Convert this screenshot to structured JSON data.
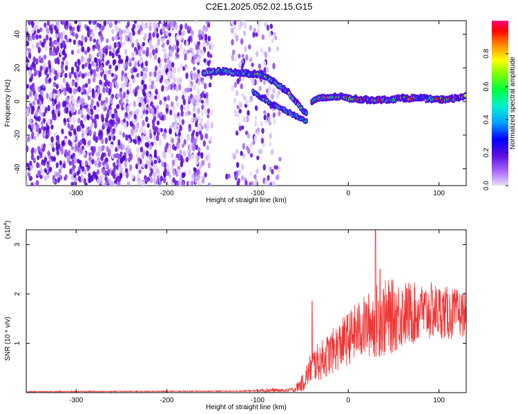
{
  "title": "C2E1.2025.052.02.15.G15",
  "colors": {
    "snr_line": "#ee3333",
    "plot_frame": "#000000"
  },
  "chart_data": [
    {
      "type": "heatmap",
      "title": "C2E1.2025.052.02.15.G15",
      "xlabel": "Height of straight line (km)",
      "ylabel": "Frequency (Hz)",
      "xlim": [
        -355,
        130
      ],
      "ylim": [
        -50,
        48
      ],
      "xticks": [
        "-300",
        "-200",
        "-100",
        "0",
        "100"
      ],
      "xtick_values": [
        -300,
        -200,
        -100,
        0,
        100
      ],
      "yticks": [
        "-40",
        "-20",
        "0",
        "20",
        "40"
      ],
      "ytick_values": [
        -40,
        -20,
        0,
        20,
        40
      ],
      "colorbar": {
        "label": "Normalized spectral amplitude",
        "range": [
          0,
          1
        ],
        "ticks": [
          "0.0",
          "0.2",
          "0.4",
          "0.6",
          "0.8"
        ],
        "tick_values": [
          0,
          0.2,
          0.4,
          0.6,
          0.8
        ]
      },
      "ridge": {
        "description": "strong signal track",
        "points": [
          [
            -160,
            17
          ],
          [
            -140,
            18
          ],
          [
            -120,
            17
          ],
          [
            -95,
            16
          ],
          [
            -80,
            11
          ],
          [
            -65,
            5
          ],
          [
            -55,
            -2
          ],
          [
            -45,
            -8
          ],
          [
            -40,
            0
          ],
          [
            -30,
            2
          ],
          [
            -10,
            3
          ],
          [
            0,
            2
          ],
          [
            20,
            1
          ],
          [
            40,
            1
          ],
          [
            60,
            2
          ],
          [
            80,
            2
          ],
          [
            100,
            1
          ],
          [
            120,
            2
          ],
          [
            130,
            3
          ]
        ],
        "secondary": [
          [
            -105,
            6
          ],
          [
            -90,
            0
          ],
          [
            -75,
            -4
          ],
          [
            -60,
            -8
          ],
          [
            -45,
            -12
          ]
        ]
      }
    },
    {
      "type": "line",
      "xlabel": "Height of straight line (km)",
      "ylabel": "SNR (10 * v/v)",
      "multiplier": "(x10",
      "multiplier_exp": "4",
      "xlim": [
        -355,
        130
      ],
      "ylim": [
        0,
        3.3
      ],
      "xticks": [
        "-300",
        "-200",
        "-100",
        "0",
        "100"
      ],
      "xtick_values": [
        -300,
        -200,
        -100,
        0,
        100
      ],
      "yticks": [
        "1",
        "2",
        "3"
      ],
      "ytick_values": [
        1,
        2,
        3
      ],
      "envelope": {
        "x": [
          -355,
          -120,
          -100,
          -90,
          -70,
          -60,
          -50,
          -40,
          -30,
          -20,
          -10,
          0,
          10,
          20,
          30,
          40,
          50,
          60,
          70,
          80,
          90,
          100,
          110,
          120,
          130
        ],
        "mean": [
          0.02,
          0.03,
          0.04,
          0.05,
          0.04,
          0.06,
          0.2,
          0.55,
          0.65,
          0.8,
          0.95,
          1.1,
          1.25,
          1.35,
          1.45,
          1.5,
          1.55,
          1.6,
          1.6,
          1.6,
          1.65,
          1.65,
          1.6,
          1.6,
          1.6
        ],
        "spread": [
          0.01,
          0.01,
          0.02,
          0.05,
          0.03,
          0.05,
          0.18,
          0.35,
          0.4,
          0.45,
          0.5,
          0.55,
          0.6,
          0.65,
          0.75,
          0.8,
          0.75,
          0.7,
          0.65,
          0.6,
          0.6,
          0.55,
          0.55,
          0.5,
          0.45
        ]
      },
      "peaks": [
        [
          -40,
          1.85
        ],
        [
          30,
          3.3
        ],
        [
          35,
          2.5
        ],
        [
          80,
          2.0
        ]
      ]
    }
  ]
}
